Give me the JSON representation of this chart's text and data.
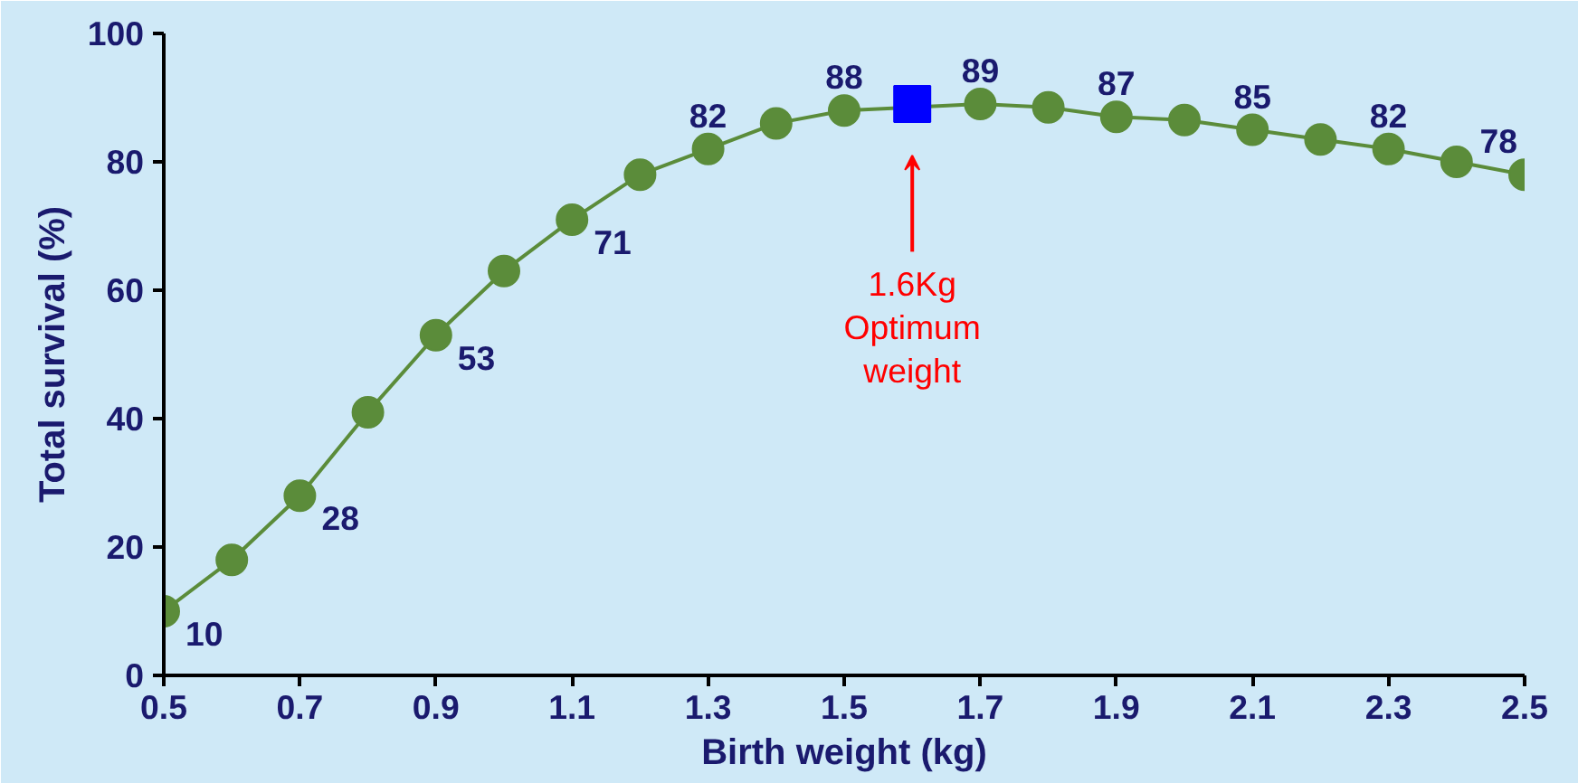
{
  "chart_data": {
    "type": "line",
    "xlabel": "Birth weight (kg)",
    "ylabel": "Total survival (%)",
    "xlim": [
      0.5,
      2.5
    ],
    "ylim": [
      0,
      100
    ],
    "xticks": [
      {
        "value": 0.5,
        "label": "0.5"
      },
      {
        "value": 0.7,
        "label": "0.7"
      },
      {
        "value": 0.9,
        "label": "0.9"
      },
      {
        "value": 1.1,
        "label": "1.1"
      },
      {
        "value": 1.3,
        "label": "1.3"
      },
      {
        "value": 1.5,
        "label": "1.5"
      },
      {
        "value": 1.7,
        "label": "1.7"
      },
      {
        "value": 1.9,
        "label": "1.9"
      },
      {
        "value": 2.1,
        "label": "2.1"
      },
      {
        "value": 2.3,
        "label": "2.3"
      },
      {
        "value": 2.5,
        "label": "2.5"
      }
    ],
    "yticks": [
      0,
      20,
      40,
      60,
      80,
      100
    ],
    "grid": false,
    "marker": "circle",
    "line_style": "solid",
    "series": [
      {
        "color": "#5b8c3a",
        "x": [
          0.5,
          0.6,
          0.7,
          0.8,
          0.9,
          1.0,
          1.1,
          1.2,
          1.3,
          1.4,
          1.5,
          1.7,
          1.8,
          1.9,
          2.0,
          2.1,
          2.2,
          2.3,
          2.4,
          2.5
        ],
        "values": [
          10,
          18,
          28,
          41,
          53,
          63,
          71,
          78,
          82,
          86,
          88,
          89,
          88.5,
          87,
          86.5,
          85,
          83.5,
          82,
          80,
          78
        ],
        "value_labels": [
          "10",
          null,
          "28",
          null,
          "53",
          null,
          "71",
          null,
          "82",
          null,
          "88",
          "89",
          null,
          "87",
          null,
          "85",
          null,
          "82",
          null,
          "78"
        ]
      },
      {
        "type": "scatter",
        "marker": "square",
        "color": "#0000ff",
        "x": [
          1.6
        ],
        "values": [
          89
        ]
      }
    ],
    "annotations": [
      "1.6Kg\nOptimum\nweight"
    ]
  }
}
